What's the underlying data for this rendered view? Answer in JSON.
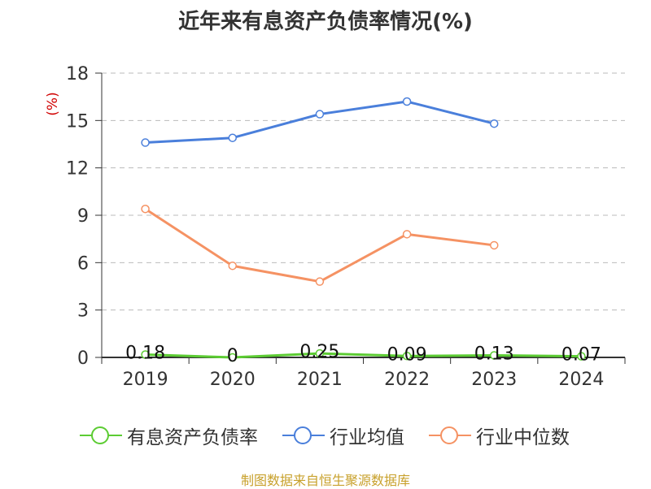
{
  "colors": {
    "debt_ratio": "#5ccc33",
    "industry_avg": "#4a7fdb",
    "industry_median": "#f59263",
    "grid": "#bbbbbb",
    "axis": "#333333",
    "unit": "#d00000",
    "footer": "#c8a12c"
  },
  "footer": "制图数据来自恒生聚源数据库",
  "chart_data": {
    "type": "line",
    "title": "近年来有息资产负债率情况(%)",
    "ylabel": "(%)",
    "ylim": [
      0,
      18
    ],
    "yticks": [
      0,
      3,
      6,
      9,
      12,
      15,
      18
    ],
    "categories": [
      "2019",
      "2020",
      "2021",
      "2022",
      "2023",
      "2024"
    ],
    "grid": true,
    "legend_position": "bottom",
    "series": [
      {
        "key": "debt_ratio",
        "name": "有息资产负债率",
        "values": [
          0.18,
          0,
          0.25,
          0.09,
          0.13,
          0.07
        ],
        "labels": [
          "0.18",
          "0",
          "0.25",
          "0.09",
          "0.13",
          "0.07"
        ]
      },
      {
        "key": "industry_avg",
        "name": "行业均值",
        "values": [
          13.6,
          13.9,
          15.4,
          16.2,
          14.8,
          null
        ]
      },
      {
        "key": "industry_median",
        "name": "行业中位数",
        "values": [
          9.4,
          5.8,
          4.8,
          7.8,
          7.1,
          null
        ]
      }
    ]
  }
}
